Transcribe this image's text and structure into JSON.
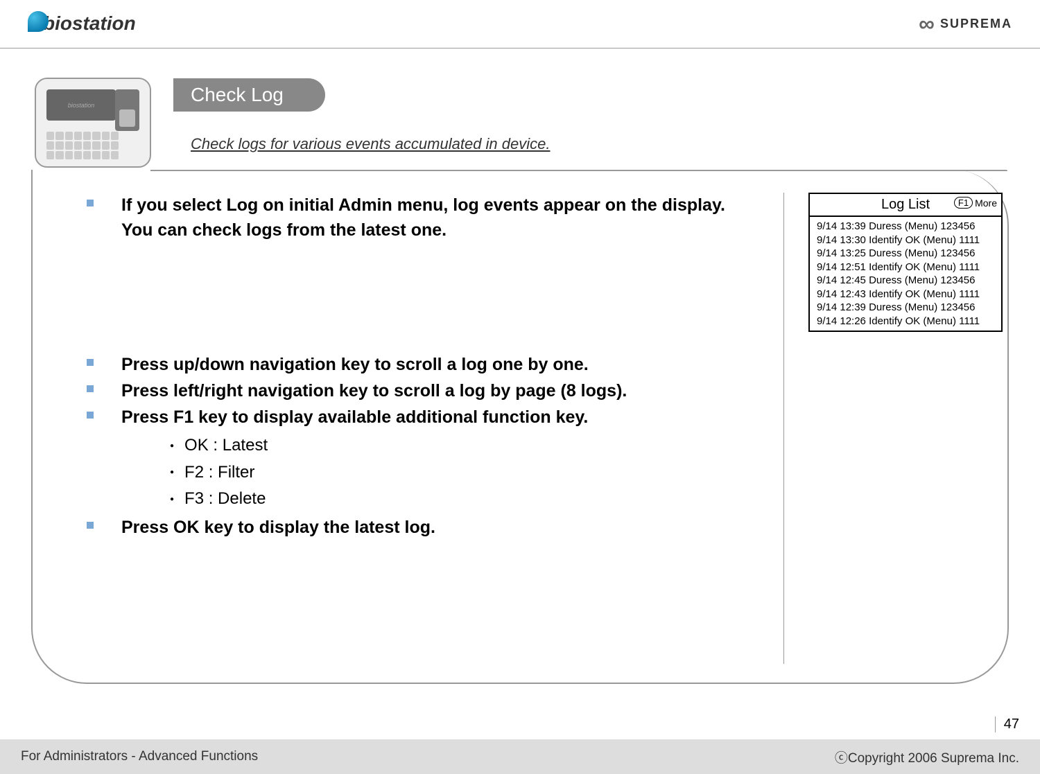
{
  "header": {
    "logo_left": "biostation",
    "logo_right": "SUPREMA"
  },
  "title": {
    "main": "Check Log",
    "subtitle": "Check logs for various events accumulated in device."
  },
  "bullets": [
    {
      "text": "If you select Log on initial Admin menu, log events appear on the display. You can check logs from the latest one."
    },
    {
      "text": "Press up/down navigation key to scroll a log one by one."
    },
    {
      "text": "Press left/right navigation key to scroll a log by page (8 logs)."
    },
    {
      "text": "Press F1 key to display available additional function key."
    },
    {
      "text": "Press OK key to display the latest log."
    }
  ],
  "sublist": [
    "OK : Latest",
    "F2 : Filter",
    "F3 : Delete"
  ],
  "log_panel": {
    "title": "Log List",
    "f1": "F1",
    "more": "More",
    "rows": [
      "9/14 13:39 Duress (Menu) 123456",
      "9/14 13:30 Identify OK (Menu) 1111",
      "9/14 13:25 Duress (Menu) 123456",
      "9/14 12:51 Identify OK (Menu) 1111",
      "9/14 12:45 Duress (Menu) 123456",
      "9/14 12:43 Identify OK (Menu) 1111",
      "9/14 12:39 Duress (Menu) 123456",
      "9/14 12:26 Identify OK (Menu) 1111"
    ]
  },
  "footer": {
    "left": "For Administrators - Advanced Functions",
    "right": "ⓒCopyright 2006 Suprema Inc.",
    "page": "47"
  }
}
